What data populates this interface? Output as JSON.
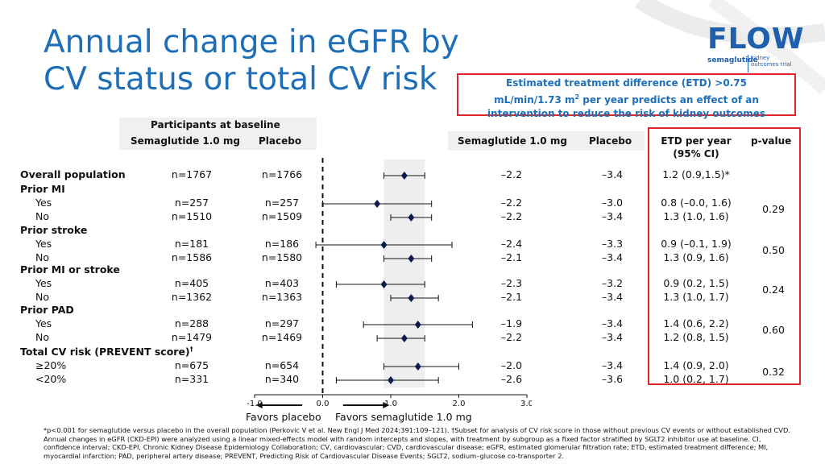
{
  "title": {
    "line1": "Annual change in eGFR by",
    "line2": "CV status or total CV risk"
  },
  "logo": {
    "word": "FLOW",
    "brand": "semaglutide",
    "tag1": "kidney",
    "tag2": "outcomes trial"
  },
  "etd_note": {
    "line1": "Estimated treatment difference (ETD) >0.75",
    "line2_pre": "mL/min/1.73 m",
    "line2_sup": "2",
    "line2_post": " per year predicts an effect of an",
    "line3": "intervention to reduce the risk of kidney outcomes"
  },
  "headers": {
    "baseline_group": "Participants at baseline",
    "sema_left": "Semaglutide 1.0 mg",
    "placebo_left": "Placebo",
    "sema_right": "Semaglutide 1.0 mg",
    "placebo_right": "Placebo",
    "etd_line1": "ETD per year",
    "etd_line2": "(95% CI)",
    "pvalue": "p-value"
  },
  "groups": [
    {
      "label": "Prior MI"
    },
    {
      "label": "Prior stroke"
    },
    {
      "label": "Prior MI or stroke"
    },
    {
      "label": "Prior PAD"
    },
    {
      "label_pre": "Total CV risk (PREVENT score)",
      "label_sup": "†"
    }
  ],
  "rows": [
    {
      "label": "Overall population",
      "n_sema": "n=1767",
      "n_pbo": "n=1766",
      "sema": "–2.2",
      "pbo": "–3.4",
      "etd": "1.2 (0.9,1.5)*",
      "pvalue": ""
    },
    {
      "label": "Yes",
      "n_sema": "n=257",
      "n_pbo": "n=257",
      "sema": "–2.2",
      "pbo": "–3.0",
      "etd": "0.8 (–0.0, 1.6)",
      "pvalue": "0.29"
    },
    {
      "label": "No",
      "n_sema": "n=1510",
      "n_pbo": "n=1509",
      "sema": "–2.2",
      "pbo": "–3.4",
      "etd": "1.3 (1.0, 1.6)",
      "pvalue": ""
    },
    {
      "label": "Yes",
      "n_sema": "n=181",
      "n_pbo": "n=186",
      "sema": "–2.4",
      "pbo": "–3.3",
      "etd": "0.9 (–0.1, 1.9)",
      "pvalue": "0.50"
    },
    {
      "label": "No",
      "n_sema": "n=1586",
      "n_pbo": "n=1580",
      "sema": "–2.1",
      "pbo": "–3.4",
      "etd": "1.3 (0.9, 1.6)",
      "pvalue": ""
    },
    {
      "label": "Yes",
      "n_sema": "n=405",
      "n_pbo": "n=403",
      "sema": "–2.3",
      "pbo": "–3.2",
      "etd": "0.9 (0.2, 1.5)",
      "pvalue": "0.24"
    },
    {
      "label": "No",
      "n_sema": "n=1362",
      "n_pbo": "n=1363",
      "sema": "–2.1",
      "pbo": "–3.4",
      "etd": "1.3 (1.0, 1.7)",
      "pvalue": ""
    },
    {
      "label": "Yes",
      "n_sema": "n=288",
      "n_pbo": "n=297",
      "sema": "–1.9",
      "pbo": "–3.4",
      "etd": "1.4 (0.6, 2.2)",
      "pvalue": "0.60"
    },
    {
      "label": "No",
      "n_sema": "n=1479",
      "n_pbo": "n=1469",
      "sema": "–2.2",
      "pbo": "–3.4",
      "etd": "1.2 (0.8, 1.5)",
      "pvalue": ""
    },
    {
      "label": "≥20%",
      "n_sema": "n=675",
      "n_pbo": "n=654",
      "sema": "–2.0",
      "pbo": "–3.4",
      "etd": "1.4 (0.9, 2.0)",
      "pvalue": "0.32"
    },
    {
      "label": "<20%",
      "n_sema": "n=331",
      "n_pbo": "n=340",
      "sema": "–2.6",
      "pbo": "–3.6",
      "etd": "1.0 (0.2, 1.7)",
      "pvalue": ""
    }
  ],
  "favors": {
    "left": "Favors placebo",
    "right": "Favors semaglutide 1.0 mg"
  },
  "chart_data": {
    "type": "forest",
    "xlim": [
      -1.0,
      3.0
    ],
    "xticks": [
      "-1.0",
      "0.0",
      "1.0",
      "2.0",
      "3.0"
    ],
    "tick_values": [
      -1.0,
      0.0,
      1.0,
      2.0,
      3.0
    ],
    "reference_line": 0.0,
    "shaded_band": [
      0.9,
      1.5
    ],
    "points": [
      {
        "estimate": 1.2,
        "lower": 0.9,
        "upper": 1.5
      },
      {
        "estimate": 0.8,
        "lower": 0.0,
        "upper": 1.6
      },
      {
        "estimate": 1.3,
        "lower": 1.0,
        "upper": 1.6
      },
      {
        "estimate": 0.9,
        "lower": -0.1,
        "upper": 1.9
      },
      {
        "estimate": 1.3,
        "lower": 0.9,
        "upper": 1.6
      },
      {
        "estimate": 0.9,
        "lower": 0.2,
        "upper": 1.5
      },
      {
        "estimate": 1.3,
        "lower": 1.0,
        "upper": 1.7
      },
      {
        "estimate": 1.4,
        "lower": 0.6,
        "upper": 2.2
      },
      {
        "estimate": 1.2,
        "lower": 0.8,
        "upper": 1.5
      },
      {
        "estimate": 1.4,
        "lower": 0.9,
        "upper": 2.0
      },
      {
        "estimate": 1.0,
        "lower": 0.2,
        "upper": 1.7
      }
    ],
    "colors": {
      "marker": "#0d1b4d",
      "band": "#eeeeee",
      "highlight": "#e0242a",
      "title": "#1f6fb8"
    }
  },
  "footnote": "*p<0.001 for semaglutide versus placebo in the overall population (Perkovic V et al. New Engl J Med 2024;391:109–121). †Subset for analysis of CV risk score in those without previous CV events or without established CVD. Annual changes in eGFR (CKD-EPI) were analyzed using a linear mixed-effects model with random intercepts and slopes, with treatment by subgroup as a fixed factor stratified by SGLT2 inhibitor use at baseline. CI, confidence interval; CKD-EPI, Chronic Kidney Disease Epidemiology Collaboration; CV, cardiovascular; CVD, cardiovascular disease; eGFR, estimated glomerular filtration rate; ETD, estimated treatment difference; MI, myocardial infarction; PAD, peripheral artery disease; PREVENT, Predicting Risk of Cardiovascular Disease Events; SGLT2, sodium–glucose co-transporter 2."
}
